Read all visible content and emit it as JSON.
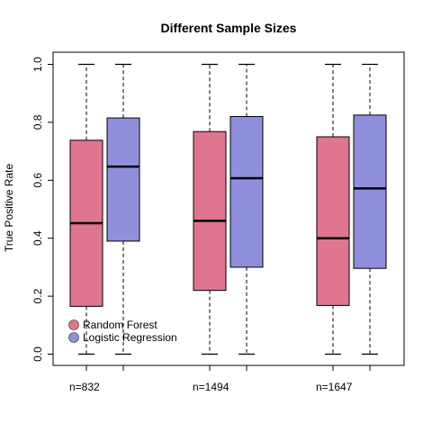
{
  "chart_data": {
    "type": "boxplot",
    "title": "Different Sample Sizes",
    "ylabel": "True Positive Rate",
    "xlabel": "",
    "ylim": [
      0.0,
      1.0
    ],
    "yticks": [
      "0.0",
      "0.2",
      "0.4",
      "0.6",
      "0.8",
      "1.0"
    ],
    "groups": [
      "n=832",
      "n=1494",
      "n=1647"
    ],
    "series": [
      {
        "name": "Random Forest",
        "color": "#e07590",
        "boxes": [
          {
            "min": 0.0,
            "q1": 0.165,
            "median": 0.452,
            "q3": 0.738,
            "max": 1.0
          },
          {
            "min": 0.0,
            "q1": 0.22,
            "median": 0.46,
            "q3": 0.768,
            "max": 1.0
          },
          {
            "min": 0.0,
            "q1": 0.168,
            "median": 0.4,
            "q3": 0.75,
            "max": 1.0
          }
        ]
      },
      {
        "name": "Logistic Regression",
        "color": "#8f8fdc",
        "boxes": [
          {
            "min": 0.0,
            "q1": 0.39,
            "median": 0.647,
            "q3": 0.815,
            "max": 1.0
          },
          {
            "min": 0.0,
            "q1": 0.3,
            "median": 0.607,
            "q3": 0.82,
            "max": 1.0
          },
          {
            "min": 0.0,
            "q1": 0.296,
            "median": 0.572,
            "q3": 0.825,
            "max": 1.0
          }
        ]
      }
    ],
    "legend": {
      "position": "bottom-left",
      "entries": [
        "Random Forest",
        "Logistic Regression"
      ]
    },
    "grid": false
  }
}
